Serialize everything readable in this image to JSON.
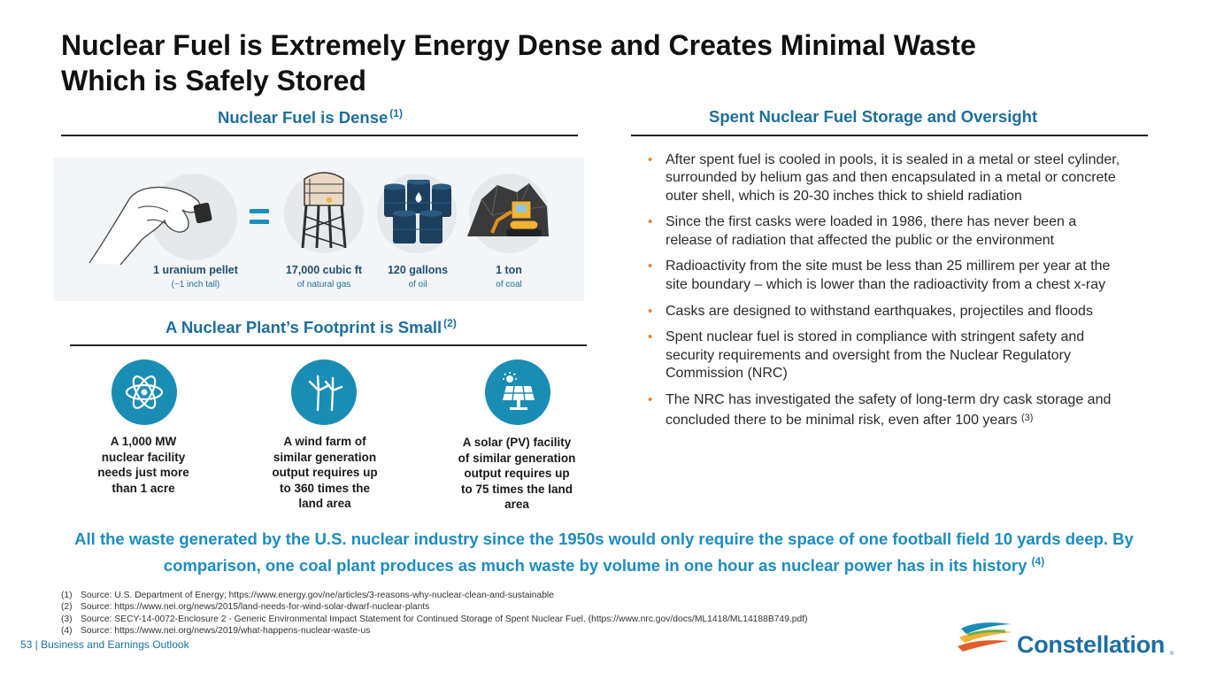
{
  "title": {
    "line1": "Nuclear Fuel is Extremely Energy Dense and Creates Minimal Waste",
    "line2": "Which is Safely Stored"
  },
  "dense": {
    "heading": "Nuclear Fuel is Dense",
    "ref": "(1)",
    "items": [
      {
        "main": "1 uranium pellet",
        "sub": "(~1 inch tall)"
      },
      {
        "main": "17,000 cubic ft",
        "sub": "of natural gas"
      },
      {
        "main": "120 gallons",
        "sub": "of oil"
      },
      {
        "main": "1 ton",
        "sub": "of coal"
      }
    ]
  },
  "footprint": {
    "heading": "A Nuclear Plant’s Footprint is Small",
    "ref": "(2)",
    "items": [
      {
        "lines": [
          "A 1,000 MW",
          "nuclear facility",
          "needs just more",
          "than 1 acre"
        ]
      },
      {
        "lines": [
          "A wind farm of",
          "similar generation",
          "output requires up",
          "to 360 times the",
          "land area"
        ]
      },
      {
        "lines": [
          "A solar (PV) facility",
          "of similar generation",
          "output requires up",
          "to 75 times the land",
          "area"
        ]
      }
    ]
  },
  "storage": {
    "heading": "Spent Nuclear Fuel Storage and Oversight",
    "bullets": [
      "After spent fuel is cooled in pools, it is sealed in a metal or steel cylinder, surrounded by helium gas and then encapsulated in a metal or concrete outer shell, which is 20-30 inches thick to shield radiation",
      "Since the first casks were loaded in 1986, there has never been a release of radiation that affected the public or the environment",
      "Radioactivity from the site must be less than 25 millirem per year at the site boundary – which is lower than the radioactivity from a chest x-ray",
      "Casks are designed to withstand earthquakes, projectiles and floods",
      "Spent nuclear fuel is stored in compliance with stringent safety and security requirements and oversight from the Nuclear Regulatory Commission (NRC)",
      "The NRC has investigated the safety of long-term dry cask storage and concluded there to be minimal risk, even after 100 years"
    ],
    "last_ref": "(3)"
  },
  "callout": {
    "text": "All the waste generated by the U.S. nuclear industry since the 1950s would only require the space of one football field 10 yards deep. By comparison, one coal plant produces as much waste by volume in one hour as nuclear power has in its history",
    "ref": "(4)"
  },
  "footnotes": [
    {
      "n": "(1)",
      "text": "Source: U.S. Department of Energy; https://www.energy.gov/ne/articles/3-reasons-why-nuclear-clean-and-sustainable"
    },
    {
      "n": "(2)",
      "text": "Source: https://www.nei.org/news/2015/land-needs-for-wind-solar-dwarf-nuclear-plants"
    },
    {
      "n": "(3)",
      "text": "Source: SECY-14-0072-Enclosure 2 - Generic Environmental Impact Statement for Continued Storage of Spent Nuclear Fuel.  (https://www.nrc.gov/docs/ML1418/ML14188B749.pdf)"
    },
    {
      "n": "(4)",
      "text": "Source: https://www.nei.org/news/2019/what-happens-nuclear-waste-us"
    }
  ],
  "footer": "53 | Business and Earnings Outlook",
  "logo": {
    "text": "Constellation",
    "reg": "®"
  },
  "colors": {
    "accent": "#1c6f9e",
    "callout": "#1c8cc0",
    "bullet": "#e0852e",
    "icon_bg": "#1a8db5"
  }
}
